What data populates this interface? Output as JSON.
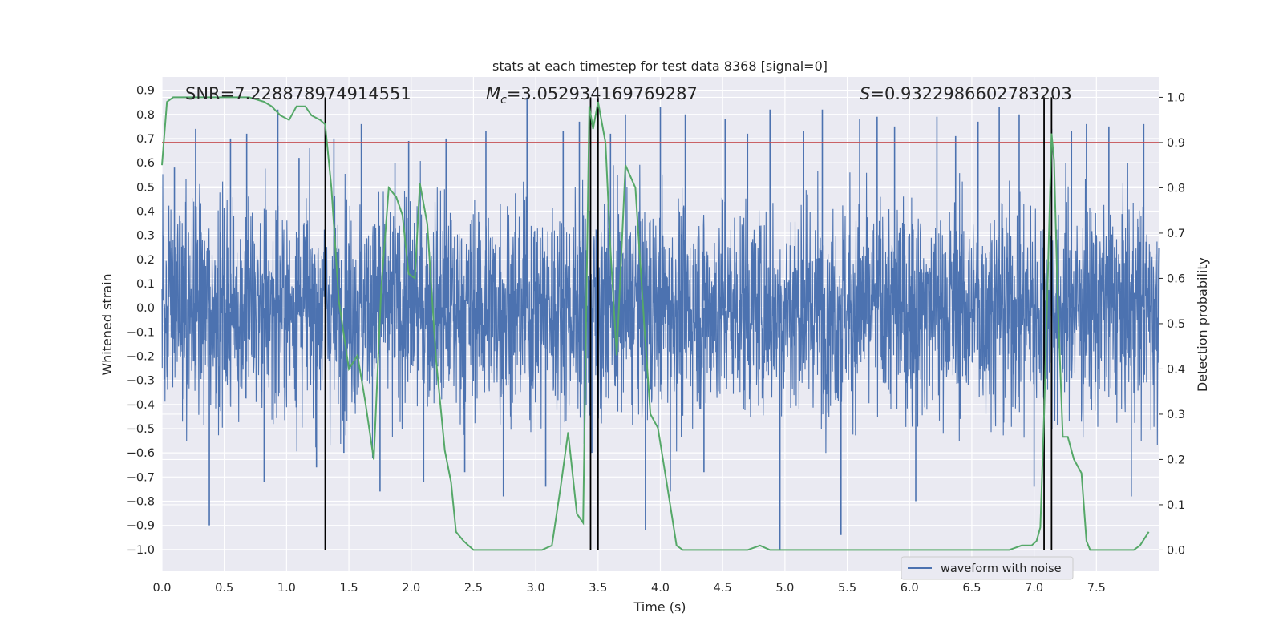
{
  "chart_data": {
    "type": "line",
    "title": "stats at each timestep for test data 8368 [signal=0]",
    "xlabel": "Time (s)",
    "ylabel_left": "Whitened strain",
    "ylabel_right": "Detection probability",
    "xlim": [
      0.0,
      8.0
    ],
    "ylim_left": [
      -1.09,
      0.955
    ],
    "ylim_right": [
      -0.047,
      1.045
    ],
    "x_ticks": [
      "0.0",
      "0.5",
      "1.0",
      "1.5",
      "2.0",
      "2.5",
      "3.0",
      "3.5",
      "4.0",
      "4.5",
      "5.0",
      "5.5",
      "6.0",
      "6.5",
      "7.0",
      "7.5"
    ],
    "x_tick_values": [
      0.0,
      0.5,
      1.0,
      1.5,
      2.0,
      2.5,
      3.0,
      3.5,
      4.0,
      4.5,
      5.0,
      5.5,
      6.0,
      6.5,
      7.0,
      7.5
    ],
    "y_left_ticks": [
      "0.9",
      "0.8",
      "0.7",
      "0.6",
      "0.5",
      "0.4",
      "0.3",
      "0.2",
      "0.1",
      "0.0",
      "−0.1",
      "−0.2",
      "−0.3",
      "−0.4",
      "−0.5",
      "−0.6",
      "−0.7",
      "−0.8",
      "−0.9",
      "−1.0"
    ],
    "y_left_tick_values": [
      0.9,
      0.8,
      0.7,
      0.6,
      0.5,
      0.4,
      0.3,
      0.2,
      0.1,
      0.0,
      -0.1,
      -0.2,
      -0.3,
      -0.4,
      -0.5,
      -0.6,
      -0.7,
      -0.8,
      -0.9,
      -1.0
    ],
    "y_right_ticks": [
      "1.0",
      "0.9",
      "0.8",
      "0.7",
      "0.6",
      "0.5",
      "0.4",
      "0.3",
      "0.2",
      "0.1",
      "0.0"
    ],
    "y_right_tick_values": [
      1.0,
      0.9,
      0.8,
      0.7,
      0.6,
      0.5,
      0.4,
      0.3,
      0.2,
      0.1,
      0.0
    ],
    "grid": true,
    "legend": {
      "position": "bottom-right",
      "entries": [
        "waveform with noise"
      ]
    },
    "annotations": {
      "snr": "SNR=7.228878974914551",
      "mc_symbol": "M",
      "mc_sub": "c",
      "mc_value": "=3.052934169769287",
      "s_symbol": "S",
      "s_value": "=0.9322986602783203"
    },
    "threshold_probability": 0.9,
    "vertical_lines_s": [
      1.31,
      3.44,
      3.5,
      7.08,
      7.14
    ],
    "waveform_spike_peaks": {
      "x": [
        0.1,
        0.27,
        0.38,
        0.55,
        0.68,
        0.82,
        0.93,
        1.1,
        1.24,
        1.38,
        1.46,
        1.6,
        1.75,
        1.87,
        1.98,
        2.1,
        2.28,
        2.43,
        2.6,
        2.74,
        2.93,
        3.08,
        3.22,
        3.35,
        3.45,
        3.6,
        3.72,
        3.88,
        4.0,
        4.08,
        4.2,
        4.35,
        4.52,
        4.7,
        4.88,
        4.96,
        5.15,
        5.3,
        5.45,
        5.6,
        5.74,
        5.88,
        6.05,
        6.22,
        6.37,
        6.55,
        6.72,
        6.88,
        7.0,
        7.14,
        7.3,
        7.42,
        7.6,
        7.78,
        7.88
      ],
      "y": [
        0.58,
        0.74,
        -0.9,
        0.7,
        0.72,
        -0.72,
        0.82,
        0.62,
        -0.66,
        0.7,
        -0.6,
        0.76,
        -0.76,
        0.6,
        0.69,
        -0.72,
        0.7,
        -0.68,
        0.73,
        -0.78,
        0.87,
        -0.74,
        0.73,
        0.77,
        -0.6,
        0.72,
        0.8,
        -0.92,
        0.83,
        -0.76,
        0.8,
        -0.68,
        0.78,
        0.72,
        0.82,
        -1.0,
        0.73,
        0.82,
        -0.94,
        0.78,
        0.79,
        0.75,
        -0.8,
        0.79,
        0.71,
        0.77,
        0.83,
        0.8,
        -0.74,
        0.74,
        0.73,
        0.76,
        0.75,
        -0.78,
        0.76
      ]
    },
    "series": [
      {
        "name": "waveform with noise",
        "color": "#4c72b0",
        "envelope_typical": [
          -0.45,
          0.52
        ]
      },
      {
        "color": "#55a868",
        "x": [
          0.0,
          0.04,
          0.09,
          0.15,
          0.25,
          0.4,
          0.55,
          0.7,
          0.82,
          0.88,
          0.95,
          1.02,
          1.08,
          1.15,
          1.2,
          1.27,
          1.31,
          1.36,
          1.42,
          1.5,
          1.57,
          1.63,
          1.7,
          1.76,
          1.82,
          1.88,
          1.93,
          1.98,
          2.03,
          2.07,
          2.13,
          2.2,
          2.27,
          2.32,
          2.36,
          2.42,
          2.5,
          2.6,
          2.75,
          2.9,
          3.05,
          3.13,
          3.2,
          3.26,
          3.33,
          3.38,
          3.43,
          3.46,
          3.5,
          3.56,
          3.6,
          3.65,
          3.72,
          3.8,
          3.87,
          3.92,
          3.98,
          4.05,
          4.13,
          4.18,
          4.3,
          4.6,
          4.7,
          4.8,
          4.88,
          5.0,
          5.3,
          5.5,
          5.7,
          6.0,
          6.5,
          6.8,
          6.9,
          6.98,
          7.02,
          7.05,
          7.08,
          7.11,
          7.14,
          7.16,
          7.19,
          7.23,
          7.27,
          7.32,
          7.38,
          7.42,
          7.45,
          7.55,
          7.7,
          7.8,
          7.85,
          7.92
        ],
        "y": [
          0.85,
          0.99,
          1.0,
          1.0,
          1.0,
          1.0,
          1.0,
          1.0,
          0.99,
          0.98,
          0.96,
          0.95,
          0.98,
          0.98,
          0.96,
          0.95,
          0.94,
          0.8,
          0.55,
          0.4,
          0.43,
          0.33,
          0.2,
          0.58,
          0.8,
          0.78,
          0.74,
          0.61,
          0.6,
          0.81,
          0.72,
          0.42,
          0.22,
          0.15,
          0.04,
          0.02,
          0.0,
          0.0,
          0.0,
          0.0,
          0.0,
          0.01,
          0.14,
          0.26,
          0.08,
          0.06,
          0.98,
          0.93,
          0.99,
          0.9,
          0.66,
          0.43,
          0.85,
          0.8,
          0.5,
          0.3,
          0.27,
          0.15,
          0.01,
          0.0,
          0.0,
          0.0,
          0.0,
          0.01,
          0.0,
          0.0,
          0.0,
          0.0,
          0.0,
          0.0,
          0.0,
          0.0,
          0.01,
          0.01,
          0.02,
          0.05,
          0.3,
          0.6,
          0.92,
          0.86,
          0.55,
          0.25,
          0.25,
          0.2,
          0.17,
          0.02,
          0.0,
          0.0,
          0.0,
          0.0,
          0.01,
          0.04
        ]
      }
    ],
    "colors": {
      "waveform": "#4c72b0",
      "probability": "#55a868",
      "threshold": "#c44e52",
      "markers": "#000000",
      "background": "#eaeaf2",
      "grid": "#ffffff"
    }
  }
}
